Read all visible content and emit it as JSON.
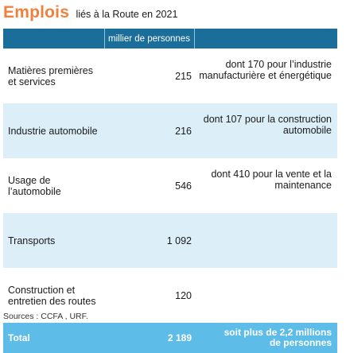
{
  "title": {
    "main": "Emplois",
    "sub": "liés à la Route en 2021"
  },
  "table": {
    "header": {
      "col1": "",
      "col2": "millier de personnes",
      "col3": ""
    },
    "rows": [
      {
        "label_lines": [
          "Matières premières",
          "et services"
        ],
        "value": "215",
        "note_lines": [
          "dont 170 pour l’industrie",
          "manufacturière et énergétique"
        ]
      },
      {
        "label_lines": [
          "Industrie automobile"
        ],
        "value": "216",
        "note_lines": [
          "dont 107 pour la construction",
          "automobile"
        ]
      },
      {
        "label_lines": [
          "Usage de l’automobile"
        ],
        "value": "546",
        "note_lines": [
          "dont 410 pour la vente et la",
          "maintenance"
        ]
      },
      {
        "label_lines": [
          "Transports"
        ],
        "value": "1 092",
        "note_lines": [
          "",
          ""
        ]
      },
      {
        "label_lines": [
          "Construction et",
          "entretien des routes"
        ],
        "value": "120",
        "note_lines": [
          "",
          ""
        ]
      }
    ],
    "total": {
      "label": "Total",
      "value": "2 189",
      "note_lines": [
        "soit plus de 2,2 millions",
        "de personnes"
      ]
    }
  },
  "sources": "Sources : CCFA , URF.",
  "colors": {
    "title_accent": "#f0813c",
    "header_bg": "#1b6e9a",
    "row_shade": "#dceef8",
    "total_bg": "#5ebde8"
  }
}
